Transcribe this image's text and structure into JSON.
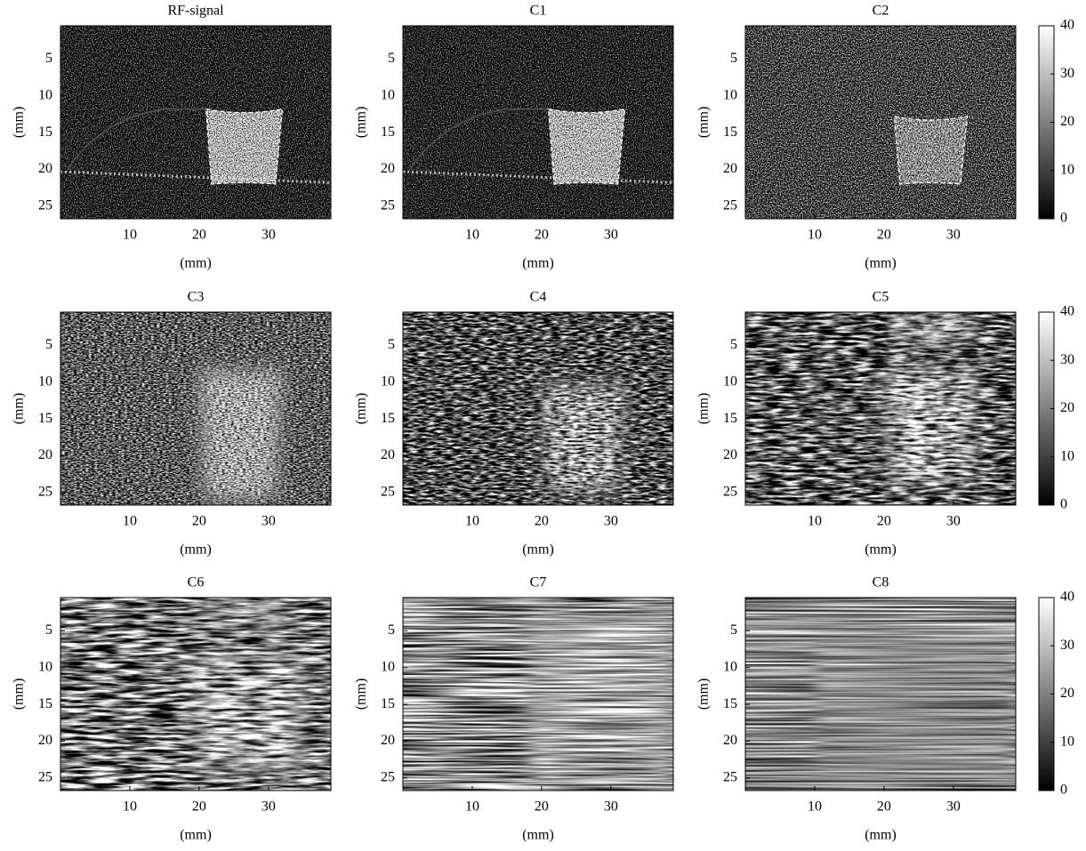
{
  "chart_data": [
    {
      "type": "image",
      "title": "RF-signal",
      "xlabel": "(mm)",
      "ylabel": "(mm)",
      "xlim": [
        0,
        39
      ],
      "ylim": [
        0.5,
        26.7
      ],
      "y_reversed": true,
      "xticks": [
        10,
        20,
        30
      ],
      "yticks": [
        5,
        10,
        15,
        20,
        25
      ]
    },
    {
      "type": "image",
      "title": "C1",
      "xlabel": "(mm)",
      "ylabel": "(mm)",
      "xlim": [
        0,
        39
      ],
      "ylim": [
        0.5,
        26.7
      ],
      "y_reversed": true,
      "xticks": [
        10,
        20,
        30
      ],
      "yticks": [
        5,
        10,
        15,
        20,
        25
      ]
    },
    {
      "type": "image",
      "title": "C2",
      "xlabel": "(mm)",
      "ylabel": "(mm)",
      "xlim": [
        0,
        39
      ],
      "ylim": [
        0.5,
        26.7
      ],
      "y_reversed": true,
      "xticks": [
        10,
        20,
        30
      ],
      "yticks": [
        5,
        10,
        15,
        20,
        25
      ],
      "colorbar": {
        "lim": [
          0,
          40
        ],
        "ticks": [
          0,
          10,
          20,
          30,
          40
        ]
      }
    },
    {
      "type": "image",
      "title": "C3",
      "xlabel": "(mm)",
      "ylabel": "(mm)",
      "xlim": [
        0,
        39
      ],
      "ylim": [
        0.5,
        26.7
      ],
      "y_reversed": true,
      "xticks": [
        10,
        20,
        30
      ],
      "yticks": [
        5,
        10,
        15,
        20,
        25
      ]
    },
    {
      "type": "image",
      "title": "C4",
      "xlabel": "(mm)",
      "ylabel": "(mm)",
      "xlim": [
        0,
        39
      ],
      "ylim": [
        0.5,
        26.7
      ],
      "y_reversed": true,
      "xticks": [
        10,
        20,
        30
      ],
      "yticks": [
        5,
        10,
        15,
        20,
        25
      ]
    },
    {
      "type": "image",
      "title": "C5",
      "xlabel": "(mm)",
      "ylabel": "(mm)",
      "xlim": [
        0,
        39
      ],
      "ylim": [
        0.5,
        26.7
      ],
      "y_reversed": true,
      "xticks": [
        10,
        20,
        30
      ],
      "yticks": [
        5,
        10,
        15,
        20,
        25
      ],
      "colorbar": {
        "lim": [
          0,
          40
        ],
        "ticks": [
          0,
          10,
          20,
          30,
          40
        ]
      }
    },
    {
      "type": "image",
      "title": "C6",
      "xlabel": "(mm)",
      "ylabel": "(mm)",
      "xlim": [
        0,
        39
      ],
      "ylim": [
        0.5,
        26.7
      ],
      "y_reversed": true,
      "xticks": [
        10,
        20,
        30
      ],
      "yticks": [
        5,
        10,
        15,
        20,
        25
      ]
    },
    {
      "type": "image",
      "title": "C7",
      "xlabel": "(mm)",
      "ylabel": "(mm)",
      "xlim": [
        0,
        39
      ],
      "ylim": [
        0.5,
        26.7
      ],
      "y_reversed": true,
      "xticks": [
        10,
        20,
        30
      ],
      "yticks": [
        5,
        10,
        15,
        20,
        25
      ]
    },
    {
      "type": "image",
      "title": "C8",
      "xlabel": "(mm)",
      "ylabel": "(mm)",
      "xlim": [
        0,
        39
      ],
      "ylim": [
        0.5,
        26.7
      ],
      "y_reversed": true,
      "xticks": [
        10,
        20,
        30
      ],
      "yticks": [
        5,
        10,
        15,
        20,
        25
      ],
      "colorbar": {
        "lim": [
          0,
          40
        ],
        "ticks": [
          0,
          10,
          20,
          30,
          40
        ]
      }
    }
  ]
}
